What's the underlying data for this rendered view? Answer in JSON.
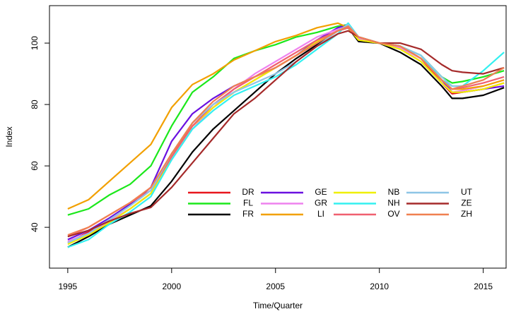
{
  "chart_data": {
    "type": "line",
    "x_label": "Time/Quarter",
    "y_label": "Index",
    "x": [
      1995,
      1996,
      1997,
      1998,
      1999,
      2000,
      2001,
      2002,
      2003,
      2004,
      2005,
      2006,
      2007,
      2008,
      2008.5,
      2009,
      2010,
      2011,
      2012,
      2013,
      2013.5,
      2014,
      2015,
      2016
    ],
    "xlim": [
      1994.12,
      2016.1
    ],
    "xticks": [
      1995,
      2000,
      2005,
      2010,
      2015
    ],
    "ylim": [
      26.7,
      112.2
    ],
    "yticks": [
      40,
      60,
      80,
      100
    ],
    "legend": "bottom-right",
    "legend_columns": 4,
    "series": [
      {
        "name": "DR",
        "color": "#e8161c",
        "values": [
          35,
          38.5,
          42,
          46,
          51,
          64,
          73,
          79,
          84,
          88,
          92,
          96,
          100,
          104,
          105,
          102,
          100,
          99,
          95,
          87,
          83.5,
          84,
          85,
          87
        ]
      },
      {
        "name": "FL",
        "color": "#1be81b",
        "values": [
          44,
          46,
          50.5,
          54,
          60,
          73,
          84,
          89,
          95,
          97.5,
          99.5,
          102,
          103.5,
          105.5,
          106,
          102,
          100,
          99,
          96,
          89,
          87,
          87.5,
          89,
          91
        ]
      },
      {
        "name": "FR",
        "color": "#000000",
        "values": [
          33.5,
          37,
          41,
          44,
          47,
          55,
          64.5,
          72,
          78,
          84,
          90,
          95,
          99.5,
          104,
          105,
          100.5,
          100,
          97,
          93,
          86,
          82,
          82,
          83,
          85.5
        ]
      },
      {
        "name": "GE",
        "color": "#6a10e0",
        "values": [
          36,
          39,
          43,
          47.5,
          53,
          68,
          77,
          82,
          86,
          89,
          92,
          96,
          101,
          105,
          106,
          102,
          100,
          99,
          95,
          88,
          84,
          84,
          85,
          86
        ]
      },
      {
        "name": "GR",
        "color": "#ee82ee",
        "values": [
          35.5,
          38,
          42,
          46,
          51,
          62,
          72,
          79,
          85,
          90,
          94,
          98,
          102,
          104.5,
          105.5,
          101.5,
          100,
          98.5,
          94,
          87,
          84,
          84.5,
          86,
          88
        ]
      },
      {
        "name": "LI",
        "color": "#f2a000",
        "values": [
          46,
          49,
          55,
          61,
          67,
          79,
          86.5,
          90,
          94.5,
          97.5,
          100.5,
          102.5,
          105,
          106.5,
          105,
          101,
          100,
          99,
          95,
          88,
          85,
          85,
          86,
          88
        ]
      },
      {
        "name": "NB",
        "color": "#f0f000",
        "values": [
          34.5,
          37.5,
          41.5,
          46,
          51,
          63,
          73,
          79,
          84,
          88,
          92,
          96,
          100.5,
          104,
          105,
          101,
          100,
          98,
          94,
          87,
          84,
          84,
          85,
          87
        ]
      },
      {
        "name": "NH",
        "color": "#33f0f0",
        "values": [
          33.5,
          36,
          41,
          45,
          50,
          62,
          72,
          78,
          83,
          86,
          89,
          93,
          98,
          103,
          106.5,
          102,
          100,
          99,
          96,
          88,
          86,
          86,
          91,
          97
        ]
      },
      {
        "name": "OV",
        "color": "#f06070",
        "values": [
          37,
          40,
          44,
          48,
          52,
          63,
          73,
          80,
          85,
          89,
          93,
          97,
          101,
          104,
          105,
          102,
          100,
          99,
          95,
          88,
          85,
          85.5,
          87,
          89
        ]
      },
      {
        "name": "UT",
        "color": "#8ec5e6",
        "values": [
          35,
          38,
          42.5,
          47,
          52,
          64,
          74,
          80,
          84,
          87,
          90,
          94,
          99,
          104,
          106,
          102,
          100,
          99,
          96,
          89,
          86,
          86,
          88,
          92
        ]
      },
      {
        "name": "ZE",
        "color": "#a52a2a",
        "values": [
          37,
          39,
          42,
          44.5,
          46.5,
          53,
          61,
          69,
          77,
          82,
          88,
          94,
          99,
          103,
          104,
          102,
          100,
          100,
          98,
          93,
          91,
          90.5,
          90,
          92
        ]
      },
      {
        "name": "ZH",
        "color": "#f08050",
        "values": [
          37.5,
          40,
          44,
          48,
          53,
          64,
          74,
          81,
          86,
          89,
          92,
          96,
          100,
          104,
          105.5,
          102,
          100,
          99,
          95,
          88,
          85,
          86,
          88,
          92
        ]
      }
    ]
  }
}
